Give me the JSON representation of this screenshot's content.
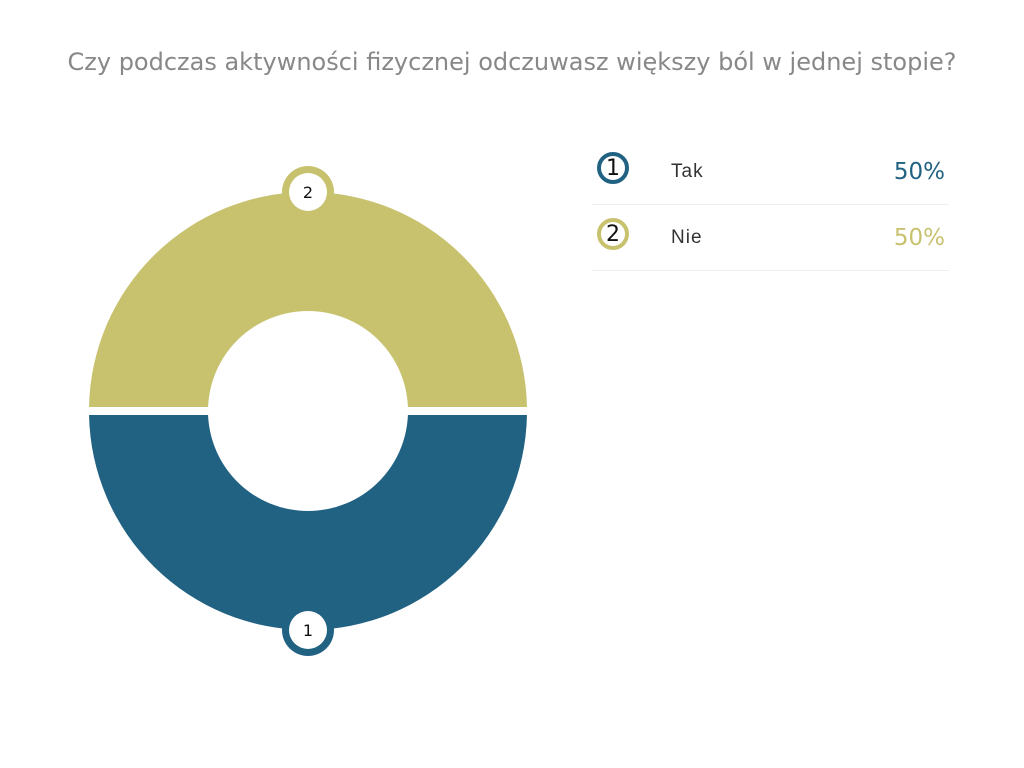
{
  "chart_data": {
    "type": "pie",
    "title": "Czy podczas aktywności fizycznej odczuwasz większy ból w jednej stopie?",
    "slices": [
      {
        "marker": "1",
        "label": "Tak",
        "value": 50,
        "value_label": "50%",
        "color": "#216283"
      },
      {
        "marker": "2",
        "label": "Nie",
        "value": 50,
        "value_label": "50%",
        "color": "#c8c26f"
      }
    ],
    "legend_position": "right"
  }
}
